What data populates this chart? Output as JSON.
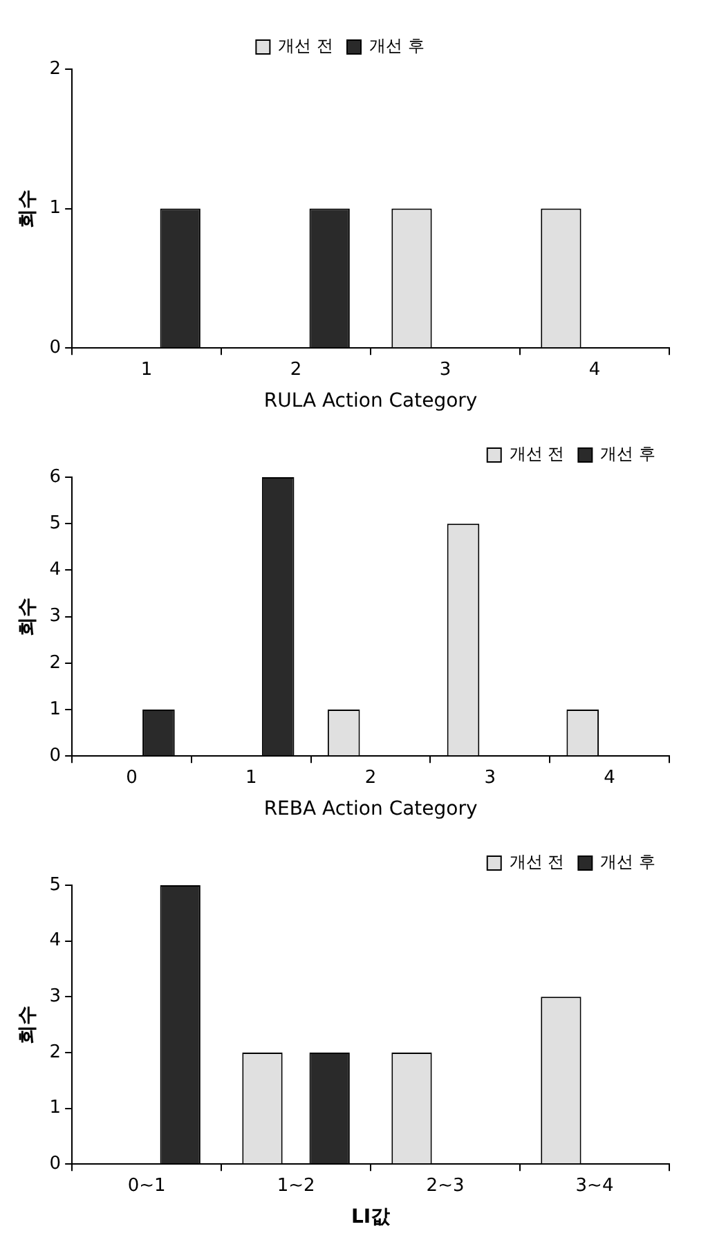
{
  "chart_data": [
    {
      "type": "bar",
      "xlabel": "RULA Action Category",
      "ylabel": "회수",
      "categories": [
        "1",
        "2",
        "3",
        "4"
      ],
      "series": [
        {
          "name": "개선 전",
          "color": "#e0e0e0",
          "values": [
            0,
            0,
            1,
            1
          ]
        },
        {
          "name": "개선 후",
          "color": "#2a2a2a",
          "values": [
            1,
            1,
            0,
            0
          ]
        }
      ],
      "ylim": [
        0,
        2
      ],
      "yticks": [
        0,
        1,
        2
      ],
      "grid": false,
      "legend": "top"
    },
    {
      "type": "bar",
      "xlabel": "REBA Action Category",
      "ylabel": "회수",
      "categories": [
        "0",
        "1",
        "2",
        "3",
        "4"
      ],
      "series": [
        {
          "name": "개선 전",
          "color": "#e0e0e0",
          "values": [
            0,
            0,
            1,
            5,
            1
          ]
        },
        {
          "name": "개선 후",
          "color": "#2a2a2a",
          "values": [
            1,
            6,
            0,
            0,
            0
          ]
        }
      ],
      "ylim": [
        0,
        6
      ],
      "yticks": [
        0,
        1,
        2,
        3,
        4,
        5,
        6
      ],
      "grid": false,
      "legend": "top right"
    },
    {
      "type": "bar",
      "xlabel": "LI값",
      "ylabel": "회수",
      "categories": [
        "0~1",
        "1~2",
        "2~3",
        "3~4"
      ],
      "series": [
        {
          "name": "개선 전",
          "color": "#e0e0e0",
          "values": [
            0,
            2,
            2,
            3
          ]
        },
        {
          "name": "개선 후",
          "color": "#2a2a2a",
          "values": [
            5,
            2,
            0,
            0
          ]
        }
      ],
      "ylim": [
        0,
        5
      ],
      "yticks": [
        0,
        1,
        2,
        3,
        4,
        5
      ],
      "grid": false,
      "legend": "top right"
    }
  ]
}
